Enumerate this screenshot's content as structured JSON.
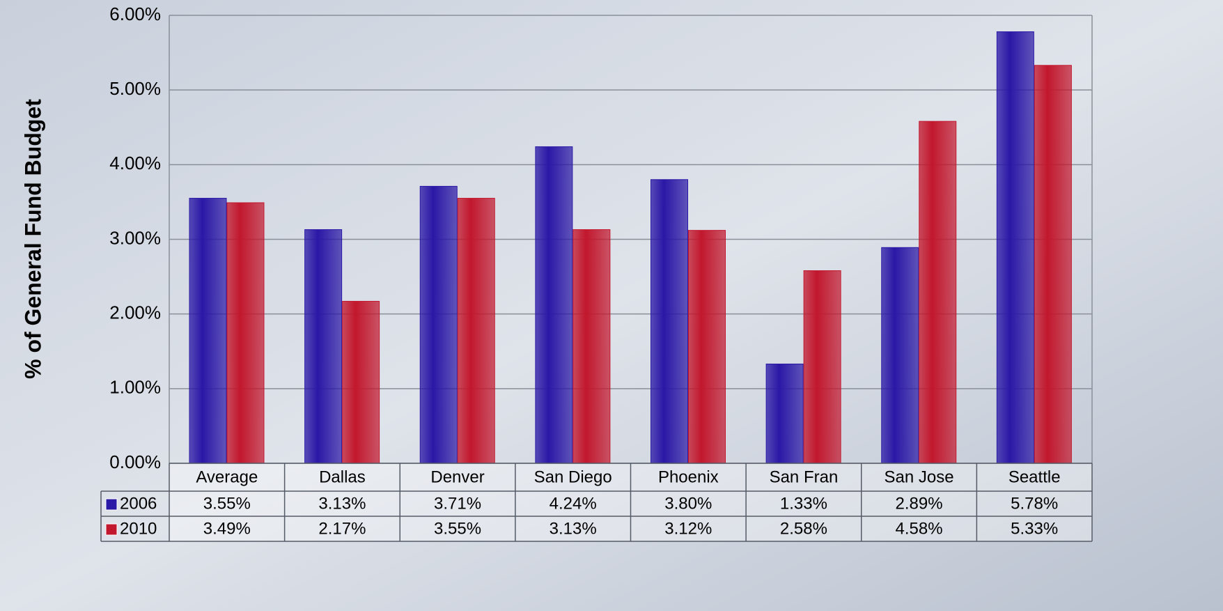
{
  "chart_data": {
    "type": "bar",
    "y_label": "% of General Fund Budget",
    "categories": [
      "Average",
      "Dallas",
      "Denver",
      "San Diego",
      "Phoenix",
      "San Fran",
      "San Jose",
      "Seattle"
    ],
    "series": [
      {
        "name": "2006",
        "color": "#2a18a6",
        "values": [
          3.55,
          3.13,
          3.71,
          4.24,
          3.8,
          1.33,
          2.89,
          5.78
        ],
        "value_labels": [
          "3.55%",
          "3.13%",
          "3.71%",
          "4.24%",
          "3.80%",
          "1.33%",
          "2.89%",
          "5.78%"
        ]
      },
      {
        "name": "2010",
        "color": "#c2172d",
        "values": [
          3.49,
          2.17,
          3.55,
          3.13,
          3.12,
          2.58,
          4.58,
          5.33
        ],
        "value_labels": [
          "3.49%",
          "2.17%",
          "3.55%",
          "3.13%",
          "3.12%",
          "2.58%",
          "4.58%",
          "5.33%"
        ]
      }
    ],
    "ylim": [
      0,
      6
    ],
    "yticks": [
      {
        "value": 0,
        "label": "0.00%"
      },
      {
        "value": 1,
        "label": "1.00%"
      },
      {
        "value": 2,
        "label": "2.00%"
      },
      {
        "value": 3,
        "label": "3.00%"
      },
      {
        "value": 4,
        "label": "4.00%"
      },
      {
        "value": 5,
        "label": "5.00%"
      },
      {
        "value": 6,
        "label": "6.00%"
      }
    ],
    "grid": true
  }
}
